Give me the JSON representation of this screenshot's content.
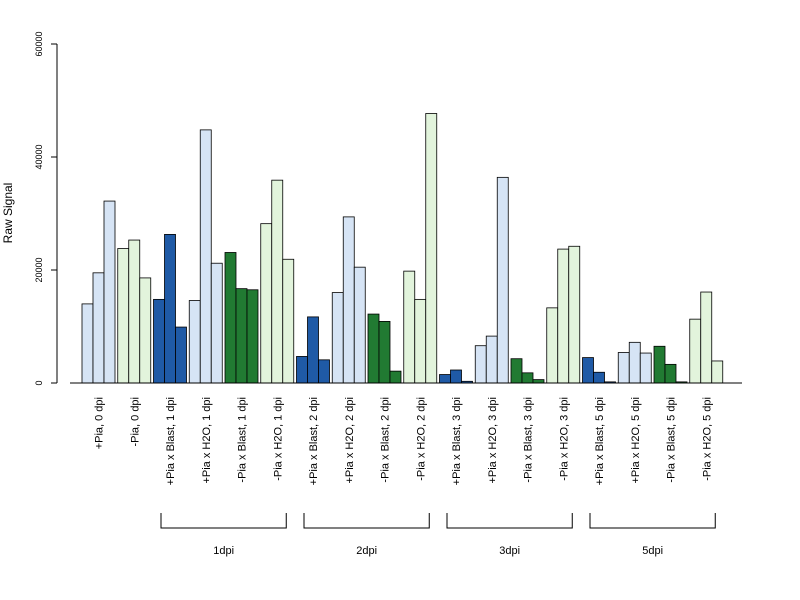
{
  "chart_data": {
    "type": "bar",
    "title": "",
    "ylabel": "Raw Signal",
    "xlabel": "",
    "ylim": [
      0,
      60000
    ],
    "yticks": [
      0,
      20000,
      40000,
      60000
    ],
    "grid": false,
    "colors": {
      "plus_blast": "#1f5aa6",
      "plus_h2o": "#d6e4f5",
      "minus_blast": "#217a32",
      "minus_h2o": "#e2f4dc"
    },
    "categories": [
      "+Pia, 0 dpi",
      "-Pia, 0 dpi",
      "+Pia x Blast, 1 dpi",
      "+Pia x H2O, 1 dpi",
      "-Pia x Blast, 1 dpi",
      "-Pia x H2O, 1 dpi",
      "+Pia x Blast, 2 dpi",
      "+Pia x H2O, 2 dpi",
      "-Pia x Blast, 2 dpi",
      "-Pia x H2O, 2 dpi",
      "+Pia x Blast, 3 dpi",
      "+Pia x H2O, 3 dpi",
      "-Pia x Blast, 3 dpi",
      "-Pia x H2O, 3 dpi",
      "+Pia x Blast, 5 dpi",
      "+Pia x H2O, 5 dpi",
      "-Pia x Blast, 5 dpi",
      "-Pia x H2O, 5 dpi"
    ],
    "category_color": [
      "plus_h2o",
      "minus_h2o",
      "plus_blast",
      "plus_h2o",
      "minus_blast",
      "minus_h2o",
      "plus_blast",
      "plus_h2o",
      "minus_blast",
      "minus_h2o",
      "plus_blast",
      "plus_h2o",
      "minus_blast",
      "minus_h2o",
      "plus_blast",
      "plus_h2o",
      "minus_blast",
      "minus_h2o"
    ],
    "replicates": [
      [
        14000,
        19500,
        32200
      ],
      [
        23800,
        25300,
        18600
      ],
      [
        14800,
        26300,
        9900
      ],
      [
        14600,
        44800,
        21200
      ],
      [
        23100,
        16700,
        16500
      ],
      [
        28200,
        35900,
        21900
      ],
      [
        4700,
        11700,
        4100
      ],
      [
        16000,
        29400,
        20500
      ],
      [
        12200,
        10900,
        2100
      ],
      [
        19800,
        14800,
        47700
      ],
      [
        1500,
        2300,
        300
      ],
      [
        6600,
        8300,
        36400
      ],
      [
        4300,
        1800,
        600
      ],
      [
        13300,
        23700,
        24200
      ],
      [
        4500,
        1900,
        200
      ],
      [
        5400,
        7200,
        5300
      ],
      [
        6500,
        3300,
        200
      ],
      [
        11300,
        16100,
        3900
      ]
    ],
    "groups": [
      {
        "label": "1dpi",
        "from": 2,
        "to": 5
      },
      {
        "label": "2dpi",
        "from": 6,
        "to": 9
      },
      {
        "label": "3dpi",
        "from": 10,
        "to": 13
      },
      {
        "label": "5dpi",
        "from": 14,
        "to": 17
      }
    ]
  }
}
